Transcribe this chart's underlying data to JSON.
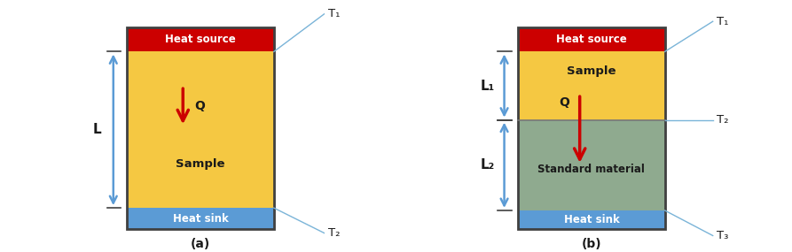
{
  "fig_width": 8.93,
  "fig_height": 2.85,
  "dpi": 100,
  "bg_color": "#ffffff",
  "heat_source_color": "#cc0000",
  "sample_color": "#f5c842",
  "standard_color": "#8faa8f",
  "heat_sink_color": "#5b9bd5",
  "arrow_color": "#5b9bd5",
  "q_arrow_color": "#cc0000",
  "border_color": "#404040",
  "text_color_dark": "#1a1a1a",
  "text_color_white": "#ffffff",
  "label_a": "(a)",
  "label_b": "(b)",
  "heat_source_text": "Heat source",
  "heat_sink_text": "Heat sink",
  "sample_text": "Sample",
  "standard_text": "Standard material",
  "q_text": "Q",
  "L_text": "L",
  "L1_text": "L₁",
  "L2_text": "L₂",
  "T1_text": "T₁",
  "T2_text": "T₂",
  "T3_text": "T₃",
  "line_color": "#7ab4d8",
  "interface_line_color": "#777777"
}
